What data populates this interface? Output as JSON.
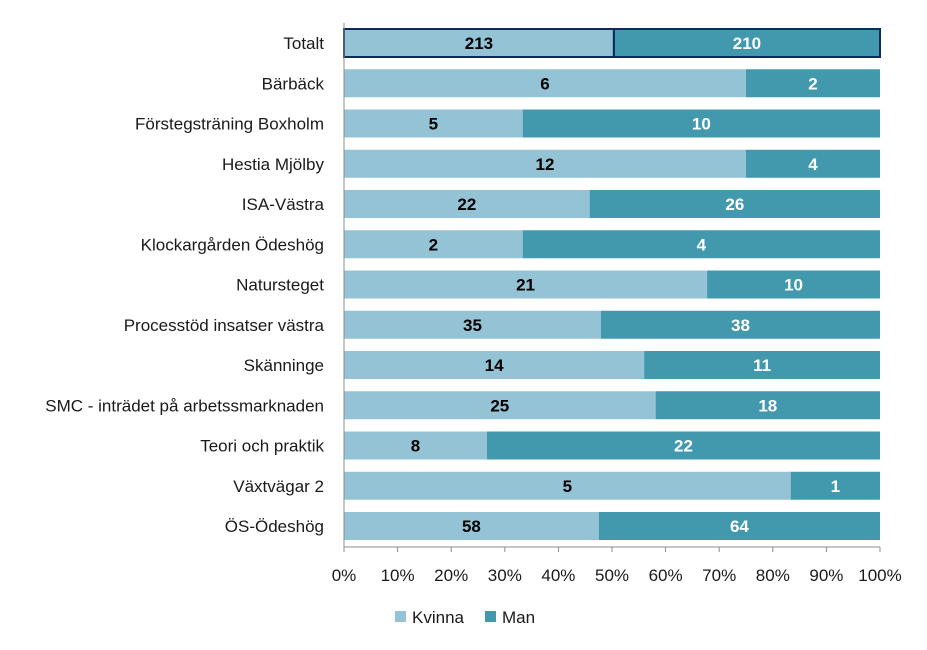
{
  "chart_data": {
    "type": "bar",
    "orientation": "horizontal",
    "stacked": "percent",
    "categories": [
      "Totalt",
      "Bärbäck",
      "Förstegsträning Boxholm",
      "Hestia Mjölby",
      "ISA-Västra",
      "Klockargården Ödeshög",
      "Natursteget",
      "Processtöd insatser västra",
      "Skänninge",
      "SMC - inträdet på arbetssmarknaden",
      "Teori och praktik",
      "Växtvägar 2",
      "ÖS-Ödeshög"
    ],
    "series": [
      {
        "name": "Kvinna",
        "color": "#93c3d4",
        "label_color": "#000000",
        "values": [
          213,
          6,
          5,
          12,
          22,
          2,
          21,
          35,
          14,
          25,
          8,
          5,
          58
        ]
      },
      {
        "name": "Man",
        "color": "#4299ae",
        "label_color": "#ffffff",
        "values": [
          210,
          2,
          10,
          4,
          26,
          4,
          10,
          38,
          11,
          18,
          22,
          1,
          64
        ]
      }
    ],
    "xlim": [
      0,
      100
    ],
    "xticks": [
      "0%",
      "10%",
      "20%",
      "30%",
      "40%",
      "50%",
      "60%",
      "70%",
      "80%",
      "90%",
      "100%"
    ],
    "highlight_category": "Totalt",
    "highlight_border_color": "#0d2a5c",
    "axis_color": "#8c8c8c",
    "legend_position": "bottom",
    "grid": false
  }
}
